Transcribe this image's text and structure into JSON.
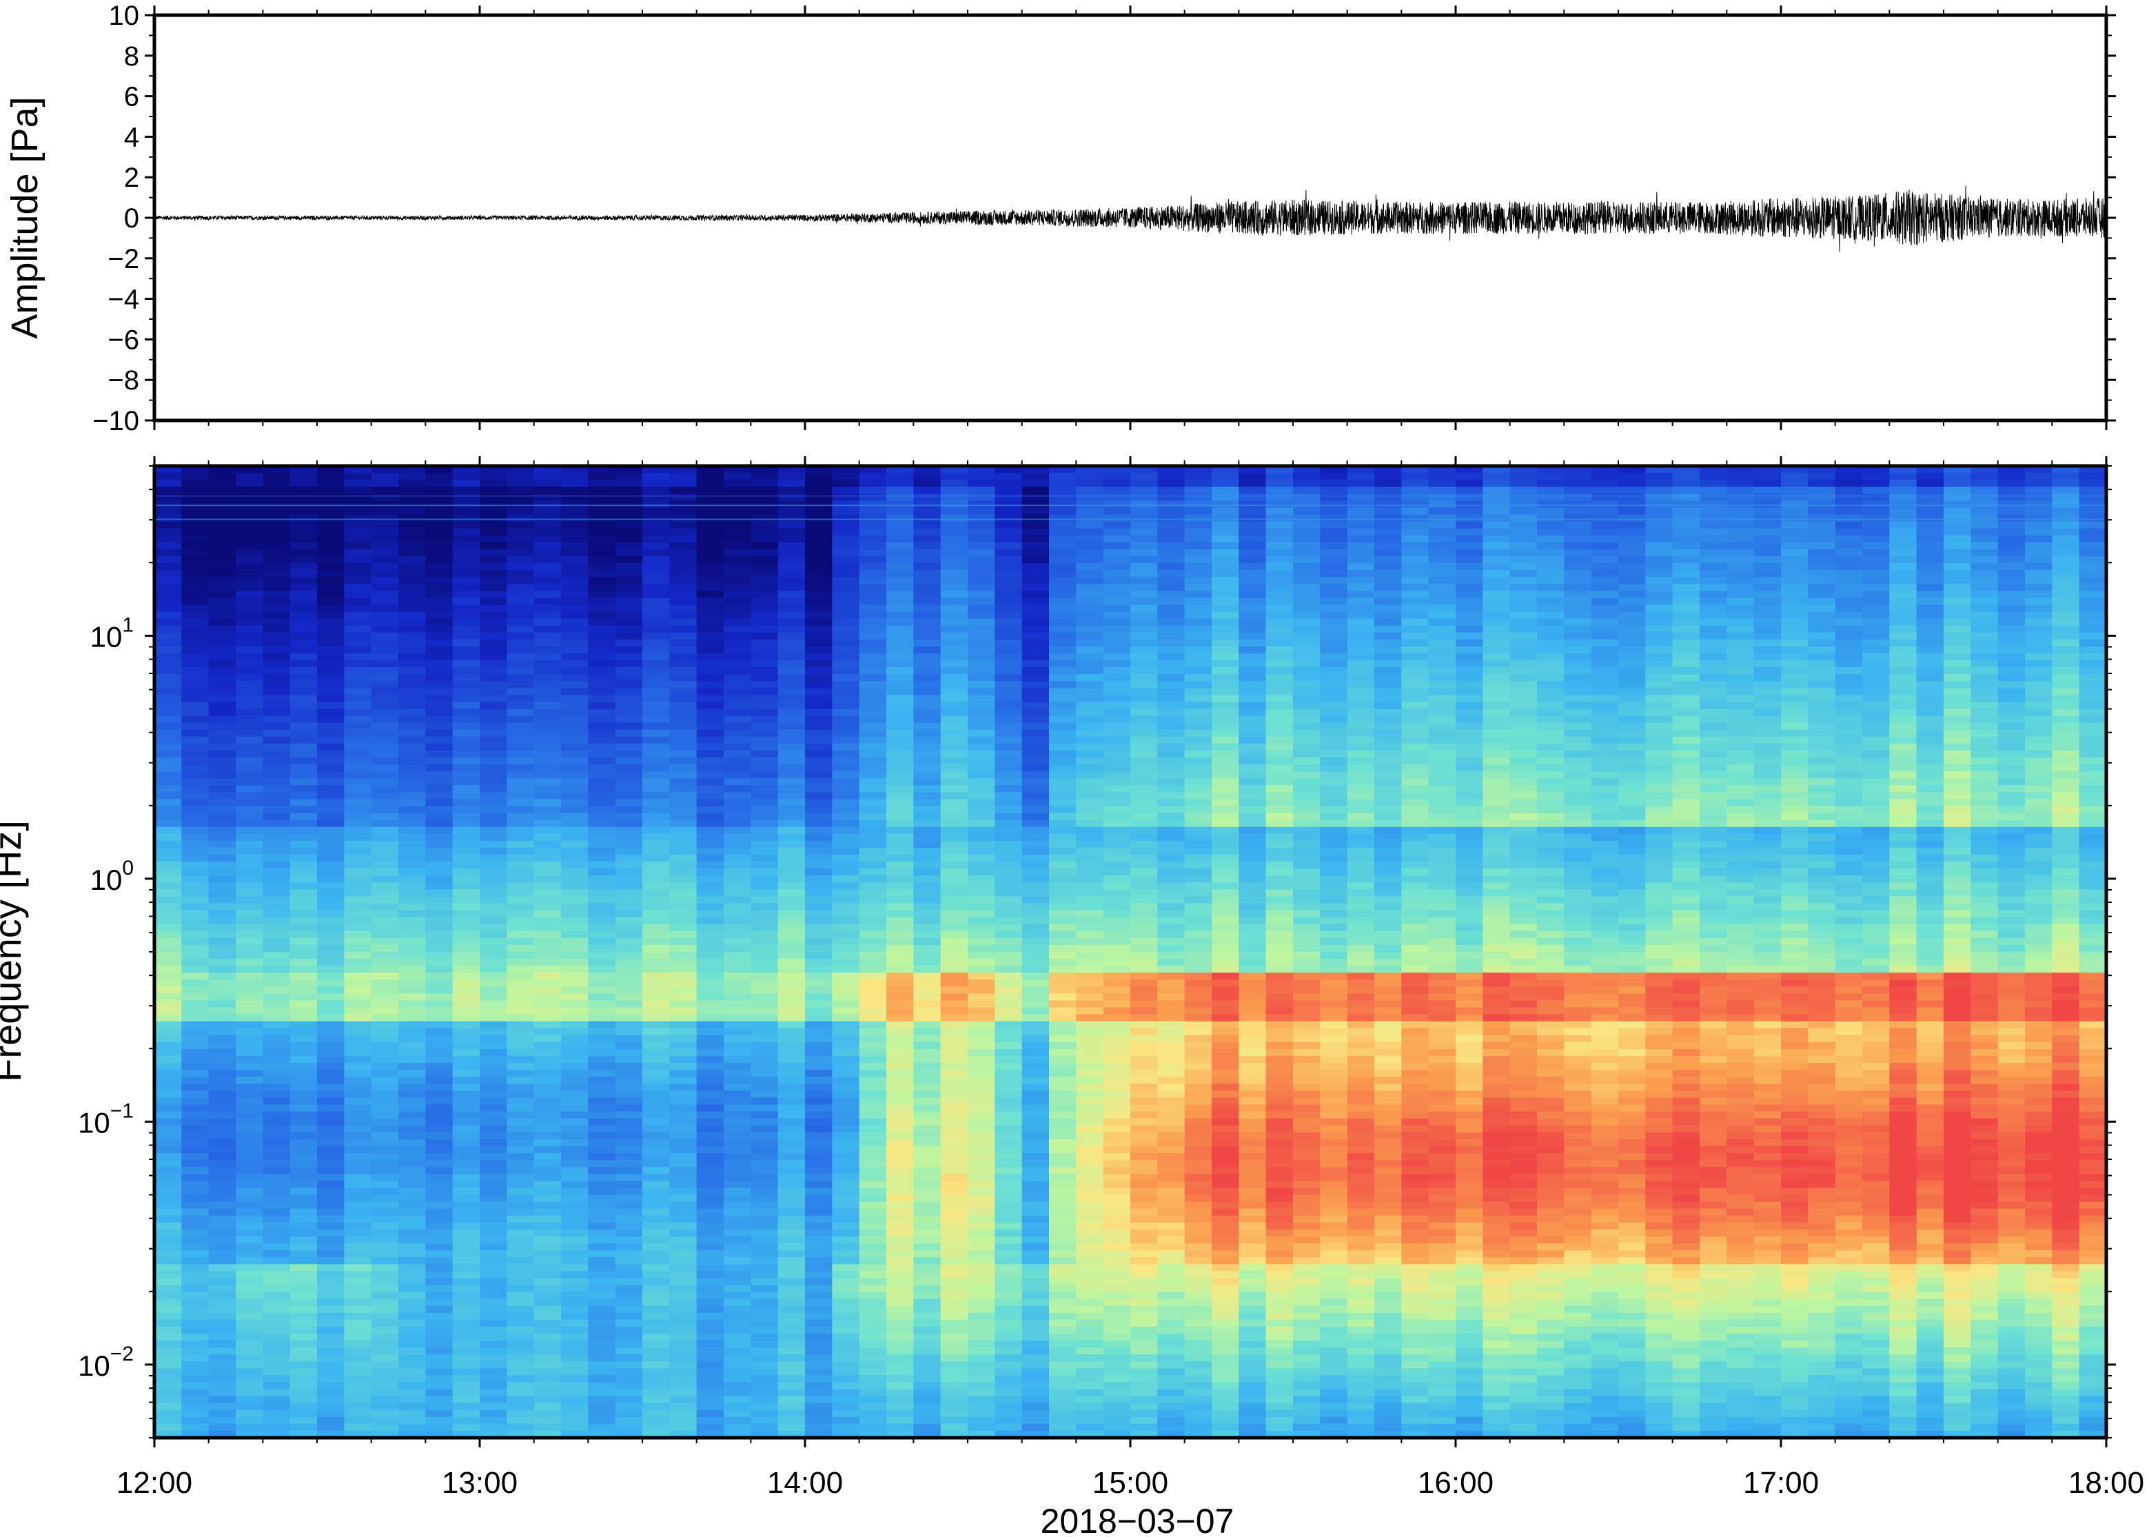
{
  "chart_data": [
    {
      "type": "line",
      "panel": "waveform",
      "ylabel": "Amplitude [Pa]",
      "ylim": [
        -10,
        10
      ],
      "yticks": [
        10,
        8,
        6,
        4,
        2,
        0,
        -2,
        -4,
        -6,
        -8,
        -10
      ],
      "ytick_labels": [
        "10",
        "8",
        "6",
        "4",
        "2",
        "0",
        "−2",
        "−4",
        "−6",
        "−8",
        "−10"
      ],
      "xlim": [
        "12:00",
        "18:00"
      ],
      "series": [
        {
          "color": "#000000",
          "x_hours": [
            12.0,
            12.5,
            13.0,
            13.5,
            14.0,
            14.25,
            14.5,
            14.75,
            14.85,
            15.0,
            15.3,
            15.5,
            15.75,
            16.0,
            16.5,
            16.8,
            17.0,
            17.25,
            17.4,
            17.6,
            17.8,
            18.0
          ],
          "envelope": [
            0.1,
            0.1,
            0.1,
            0.12,
            0.15,
            0.25,
            0.35,
            0.4,
            0.45,
            0.5,
            0.8,
            0.9,
            0.8,
            0.8,
            0.8,
            0.8,
            1.0,
            1.1,
            1.4,
            1.0,
            0.9,
            1.0
          ]
        }
      ]
    },
    {
      "type": "heatmap",
      "panel": "spectrogram",
      "ylabel": "Frequency [Hz]",
      "yscale": "log",
      "ylim": [
        0.005,
        50
      ],
      "ytick_labels": [
        {
          "value": 10,
          "base": "10",
          "exp": "1"
        },
        {
          "value": 1,
          "base": "10",
          "exp": "0"
        },
        {
          "value": 0.1,
          "base": "10",
          "exp": "−1"
        },
        {
          "value": 0.01,
          "base": "10",
          "exp": "−2"
        }
      ],
      "xlabel": "2018−03−07",
      "xticks": [
        "12:00",
        "13:00",
        "14:00",
        "15:00",
        "16:00",
        "17:00",
        "18:00"
      ],
      "colormap": "jet",
      "colors": {
        "low": "#0a0a78",
        "mid": "#3cb4f0",
        "high": "#f04646"
      }
    }
  ]
}
